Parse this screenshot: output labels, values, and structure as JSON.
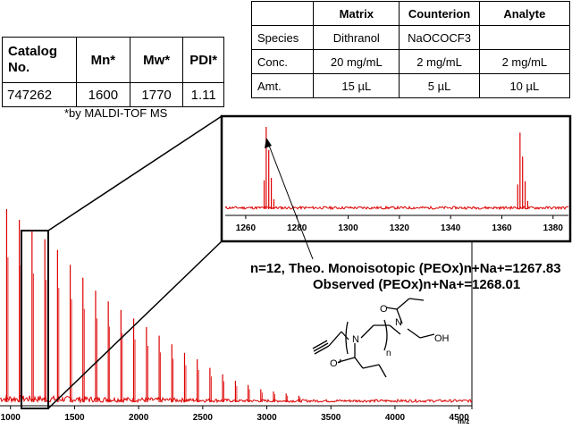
{
  "catalog_table": {
    "headers": [
      "Catalog No.",
      "Mn*",
      "Mw*",
      "PDI*"
    ],
    "row": [
      "747262",
      "1600",
      "1770",
      "1.11"
    ]
  },
  "footnote": "*by MALDI-TOF MS",
  "sample_table": {
    "headers": [
      "",
      "Matrix",
      "Counterion",
      "Analyte"
    ],
    "rows": [
      [
        "Species",
        "Dithranol",
        "NaOCOCF3",
        ""
      ],
      [
        "Conc.",
        "20 mg/mL",
        "2 mg/mL",
        "2 mg/mL"
      ],
      [
        "Amt.",
        "15 µL",
        "5 µL",
        "10 µL"
      ]
    ]
  },
  "annotations": {
    "line1": "n=12, Theo. Monoisotopic (PEOx)n+Na+=1267.83",
    "line2": "Observed (PEOx)n+Na+=1268.01"
  },
  "colors": {
    "spectrum": "#dd0000",
    "noise": "#dd0000",
    "frame": "#000000"
  },
  "chart_data": [
    {
      "type": "line",
      "title": "",
      "xlabel": "m/z",
      "ylabel": "",
      "xlim": [
        960,
        4600
      ],
      "ylim": [
        0,
        1
      ],
      "x_ticks": [
        1000,
        1500,
        2000,
        2500,
        3000,
        3500,
        4000,
        4500
      ],
      "peak_spacing": 99.13,
      "series": [
        {
          "values": [
            {
              "x": 970,
              "y": 0.9
            },
            {
              "x": 1069,
              "y": 0.85
            },
            {
              "x": 1168,
              "y": 0.8
            },
            {
              "x": 1268,
              "y": 0.76
            },
            {
              "x": 1367,
              "y": 0.71
            },
            {
              "x": 1466,
              "y": 0.64
            },
            {
              "x": 1565,
              "y": 0.58
            },
            {
              "x": 1664,
              "y": 0.52
            },
            {
              "x": 1763,
              "y": 0.47
            },
            {
              "x": 1862,
              "y": 0.43
            },
            {
              "x": 1961,
              "y": 0.39
            },
            {
              "x": 2061,
              "y": 0.35
            },
            {
              "x": 2160,
              "y": 0.31
            },
            {
              "x": 2259,
              "y": 0.27
            },
            {
              "x": 2358,
              "y": 0.23
            },
            {
              "x": 2457,
              "y": 0.2
            },
            {
              "x": 2556,
              "y": 0.16
            },
            {
              "x": 2655,
              "y": 0.13
            },
            {
              "x": 2755,
              "y": 0.1
            },
            {
              "x": 2854,
              "y": 0.08
            },
            {
              "x": 2953,
              "y": 0.06
            },
            {
              "x": 3052,
              "y": 0.05
            },
            {
              "x": 3151,
              "y": 0.04
            },
            {
              "x": 3250,
              "y": 0.03
            }
          ]
        }
      ]
    },
    {
      "type": "line",
      "title": "",
      "xlabel": "",
      "xlim": [
        1252,
        1386
      ],
      "ylim": [
        0,
        1
      ],
      "x_ticks": [
        1260,
        1280,
        1300,
        1320,
        1340,
        1360,
        1380
      ],
      "series": [
        {
          "values": [
            {
              "x": 1267.2,
              "y": 0.35
            },
            {
              "x": 1268.0,
              "y": 1.0
            },
            {
              "x": 1269.0,
              "y": 0.72
            },
            {
              "x": 1270.0,
              "y": 0.38
            },
            {
              "x": 1271.0,
              "y": 0.12
            },
            {
              "x": 1366.2,
              "y": 0.3
            },
            {
              "x": 1367.1,
              "y": 0.93
            },
            {
              "x": 1368.1,
              "y": 0.64
            },
            {
              "x": 1369.1,
              "y": 0.34
            },
            {
              "x": 1370.1,
              "y": 0.1
            }
          ]
        }
      ]
    }
  ]
}
